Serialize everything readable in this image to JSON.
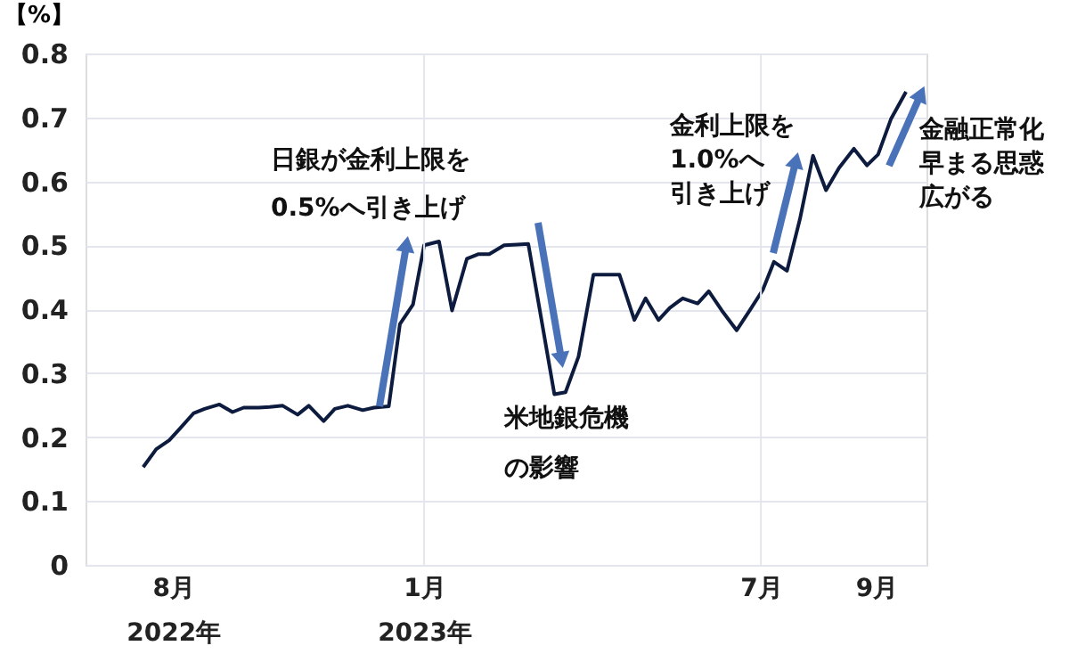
{
  "chart_data": {
    "type": "line",
    "ylabel": "【%】",
    "x": [
      "2022-08-03",
      "2022-08-10",
      "2022-08-17",
      "2022-08-23",
      "2022-08-30",
      "2022-09-05",
      "2022-09-13",
      "2022-09-20",
      "2022-09-26",
      "2022-10-04",
      "2022-10-10",
      "2022-10-17",
      "2022-10-25",
      "2022-10-31",
      "2022-11-08",
      "2022-11-14",
      "2022-11-21",
      "2022-11-29",
      "2022-12-05",
      "2022-12-13",
      "2022-12-19",
      "2022-12-26",
      "2023-01-01",
      "2023-01-09",
      "2023-01-16",
      "2023-01-24",
      "2023-01-30",
      "2023-02-05",
      "2023-02-13",
      "2023-02-20",
      "2023-02-26",
      "2023-03-12",
      "2023-03-18",
      "2023-03-25",
      "2023-04-02",
      "2023-04-16",
      "2023-04-24",
      "2023-04-30",
      "2023-05-07",
      "2023-05-13",
      "2023-05-20",
      "2023-05-28",
      "2023-06-03",
      "2023-06-10",
      "2023-06-18",
      "2023-06-25",
      "2023-07-02",
      "2023-07-08",
      "2023-07-15",
      "2023-07-22",
      "2023-07-29",
      "2023-08-05",
      "2023-08-12",
      "2023-08-20",
      "2023-08-27",
      "2023-09-02",
      "2023-09-09",
      "2023-09-17"
    ],
    "series": [
      {
        "color": "#0d1b3e",
        "values": [
          0.153,
          0.181,
          0.195,
          0.214,
          0.237,
          0.244,
          0.251,
          0.239,
          0.246,
          0.246,
          0.247,
          0.249,
          0.235,
          0.249,
          0.225,
          0.244,
          0.249,
          0.242,
          0.246,
          0.248,
          0.377,
          0.407,
          0.5,
          0.506,
          0.398,
          0.479,
          0.486,
          0.486,
          0.5,
          0.501,
          0.502,
          0.267,
          0.27,
          0.326,
          0.454,
          0.454,
          0.383,
          0.417,
          0.383,
          0.402,
          0.417,
          0.409,
          0.428,
          0.398,
          0.367,
          0.398,
          0.43,
          0.474,
          0.46,
          0.541,
          0.64,
          0.586,
          0.621,
          0.651,
          0.625,
          0.642,
          0.698,
          0.74
        ]
      }
    ],
    "xlim": [
      "2022-07-03",
      "2023-09-28"
    ],
    "xticks": [
      {
        "value": "2022-08-19",
        "label": "8月\n2022年"
      },
      {
        "value": "2023-01-01",
        "label": "1月\n2023年"
      },
      {
        "value": "2023-07-01",
        "label": "7月"
      },
      {
        "value": "2023-09-01",
        "label": "9月"
      }
    ],
    "ylim": [
      0,
      0.8
    ],
    "yticks": [
      0,
      0.1,
      0.2,
      0.3,
      0.4,
      0.5,
      0.6,
      0.7,
      0.8
    ],
    "grid": "y",
    "marker": "none",
    "line_style": "solid",
    "ref_lines": [
      {
        "axis": "x",
        "value": "2023-01-01",
        "color": "#e3e6ec"
      },
      {
        "axis": "x",
        "value": "2023-07-01",
        "color": "#e3e6ec"
      }
    ],
    "annotations": [
      "日銀が金利上限を0.5%へ引き上げ",
      "米地銀危機の影響",
      "金利上限を1.0%へ引き上げ",
      "金融正常化早まる思惑広がる"
    ]
  }
}
